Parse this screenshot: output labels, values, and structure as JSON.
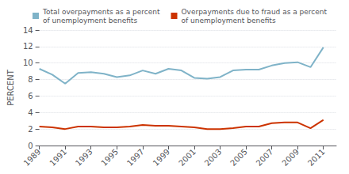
{
  "chart_data": {
    "type": "line",
    "x": [
      1989,
      1990,
      1991,
      1992,
      1993,
      1994,
      1995,
      1996,
      1997,
      1998,
      1999,
      2000,
      2001,
      2002,
      2003,
      2004,
      2005,
      2006,
      2007,
      2008,
      2009,
      2010,
      2011
    ],
    "series": [
      {
        "name": "Total overpayments as a percent\nof unemployment benefits",
        "color": "#7fb3c8",
        "values": [
          9.3,
          8.6,
          7.5,
          8.8,
          8.9,
          8.7,
          8.3,
          8.5,
          9.1,
          8.7,
          9.3,
          9.1,
          8.2,
          8.1,
          8.3,
          9.1,
          9.2,
          9.2,
          9.7,
          10.0,
          10.1,
          9.5,
          11.9
        ]
      },
      {
        "name": "Overpayments due to fraud as a percent\nof unemployment benefits",
        "color": "#cc3300",
        "values": [
          2.3,
          2.2,
          2.0,
          2.3,
          2.3,
          2.2,
          2.2,
          2.3,
          2.5,
          2.4,
          2.4,
          2.3,
          2.2,
          2.0,
          2.0,
          2.1,
          2.3,
          2.3,
          2.7,
          2.8,
          2.8,
          2.1,
          3.1
        ]
      }
    ],
    "ylabel": "PERCENT",
    "xlim": [
      1989,
      2012
    ],
    "xticks": [
      1989,
      1991,
      1993,
      1995,
      1997,
      1999,
      2001,
      2003,
      2005,
      2007,
      2009,
      2011
    ],
    "ylim": [
      0,
      14
    ],
    "yticks": [
      0,
      2,
      4,
      6,
      8,
      10,
      12,
      14
    ],
    "grid": true,
    "legend": "top left"
  }
}
